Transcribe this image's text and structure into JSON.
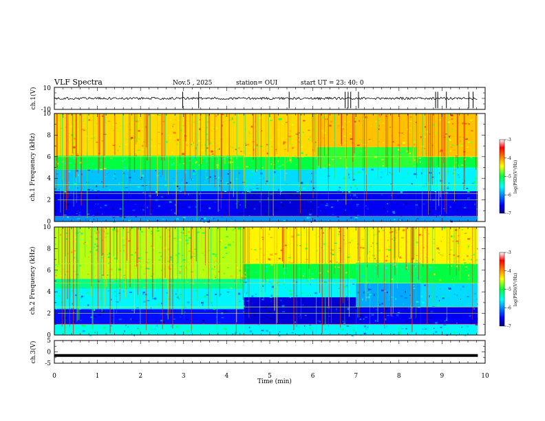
{
  "header": {
    "title": "VLF Spectra",
    "date": "Nov.5  , 2025",
    "station": "station= OUI",
    "start": "start  UT  =   23: 40: 0"
  },
  "chart_data": [
    {
      "type": "line",
      "name": "ch1-waveform",
      "ylabel": "ch.1(V)",
      "ylim": [
        -10,
        10
      ],
      "yticks": [
        "10",
        "-10"
      ],
      "xlim": [
        0,
        10
      ],
      "baseline": 0,
      "spikes_x_min": [
        2.98,
        3.35,
        5.45,
        6.75,
        6.82,
        6.88,
        7.06,
        8.85,
        8.9,
        9.1,
        9.62,
        9.72
      ],
      "data_end_min": 9.83
    },
    {
      "type": "heatmap",
      "name": "ch1-spectrogram",
      "ylabel": "ch.1 Frequency  (kHz)",
      "ylim": [
        0,
        10
      ],
      "yticks": [
        "0",
        "2",
        "4",
        "6",
        "8",
        "10"
      ],
      "xlim": [
        0,
        10
      ],
      "data_end_min": 9.83,
      "colorbar": {
        "label": "log(PSD)(V²/Hz)",
        "range": [
          -7,
          -3
        ],
        "ticks": [
          "-3",
          "-4",
          "-5",
          "-6",
          "-7"
        ]
      },
      "segments": [
        {
          "t0": 0.0,
          "t1": 4.4,
          "bands": [
            [
              0,
              0.5,
              -6.0
            ],
            [
              0.5,
              2.8,
              -6.6
            ],
            [
              2.8,
              4.8,
              -5.8
            ],
            [
              4.8,
              6.1,
              -5.0
            ],
            [
              6.1,
              10,
              -4.3
            ]
          ]
        },
        {
          "t0": 4.4,
          "t1": 6.1,
          "bands": [
            [
              0,
              0.5,
              -6.0
            ],
            [
              0.5,
              2.8,
              -6.7
            ],
            [
              2.8,
              4.8,
              -5.7
            ],
            [
              4.8,
              6.0,
              -5.0
            ],
            [
              6.0,
              10,
              -4.3
            ]
          ]
        },
        {
          "t0": 6.1,
          "t1": 8.4,
          "bands": [
            [
              0,
              0.5,
              -6.0
            ],
            [
              0.5,
              2.8,
              -6.6
            ],
            [
              2.8,
              5.0,
              -5.6
            ],
            [
              5.0,
              6.9,
              -4.9
            ],
            [
              6.9,
              10,
              -4.2
            ]
          ]
        },
        {
          "t0": 8.4,
          "t1": 9.83,
          "bands": [
            [
              0,
              0.5,
              -6.0
            ],
            [
              0.5,
              2.8,
              -6.6
            ],
            [
              2.8,
              5.0,
              -5.6
            ],
            [
              5.0,
              6.0,
              -5.0
            ],
            [
              6.0,
              10,
              -4.2
            ]
          ]
        }
      ],
      "lines_khz": [
        0.5,
        2.0,
        2.6,
        3.4,
        6.0
      ]
    },
    {
      "type": "heatmap",
      "name": "ch2-spectrogram",
      "ylabel": "ch.2 Frequency  (kHz)",
      "ylim": [
        0,
        10
      ],
      "yticks": [
        "0",
        "2",
        "4",
        "6",
        "8",
        "10"
      ],
      "xlim": [
        0,
        10
      ],
      "data_end_min": 9.83,
      "colorbar": {
        "label": "log(PSD)(V²/Hz)",
        "range": [
          -7,
          -3
        ],
        "ticks": [
          "-3",
          "-4",
          "-5",
          "-6",
          "-7"
        ]
      },
      "segments": [
        {
          "t0": 0.0,
          "t1": 4.4,
          "bands": [
            [
              0,
              1.0,
              -5.5
            ],
            [
              1.0,
              2.4,
              -6.5
            ],
            [
              2.4,
              4.3,
              -5.6
            ],
            [
              4.3,
              5.2,
              -5.2
            ],
            [
              5.2,
              10,
              -4.6
            ]
          ]
        },
        {
          "t0": 4.4,
          "t1": 7.0,
          "bands": [
            [
              0,
              1.0,
              -5.6
            ],
            [
              1.0,
              3.5,
              -6.7
            ],
            [
              3.5,
              5.2,
              -5.6
            ],
            [
              5.2,
              6.6,
              -5.0
            ],
            [
              6.6,
              10,
              -4.4
            ]
          ]
        },
        {
          "t0": 7.0,
          "t1": 8.5,
          "bands": [
            [
              0,
              1.0,
              -5.6
            ],
            [
              1.0,
              2.6,
              -6.6
            ],
            [
              2.6,
              4.8,
              -5.9
            ],
            [
              4.8,
              6.7,
              -5.1
            ],
            [
              6.7,
              10,
              -4.4
            ]
          ]
        },
        {
          "t0": 8.5,
          "t1": 9.83,
          "bands": [
            [
              0,
              1.0,
              -5.6
            ],
            [
              1.0,
              2.6,
              -6.6
            ],
            [
              2.6,
              4.8,
              -5.7
            ],
            [
              4.8,
              6.6,
              -5.0
            ],
            [
              6.6,
              10,
              -4.4
            ]
          ]
        }
      ],
      "lines_khz": [
        1.0,
        2.0,
        2.6,
        4.8,
        6.6
      ]
    },
    {
      "type": "line",
      "name": "ch3-waveform",
      "ylabel": "ch.3(V)",
      "ylim": [
        -5,
        5
      ],
      "yticks": [
        "5",
        "0",
        "-5"
      ],
      "xlim": [
        0,
        10
      ],
      "value": -1.6,
      "data_end_min": 9.83
    }
  ],
  "xaxis": {
    "label": "Time  (min)",
    "ticks": [
      "0",
      "1",
      "2",
      "3",
      "4",
      "5",
      "6",
      "7",
      "8",
      "9",
      "10"
    ]
  }
}
